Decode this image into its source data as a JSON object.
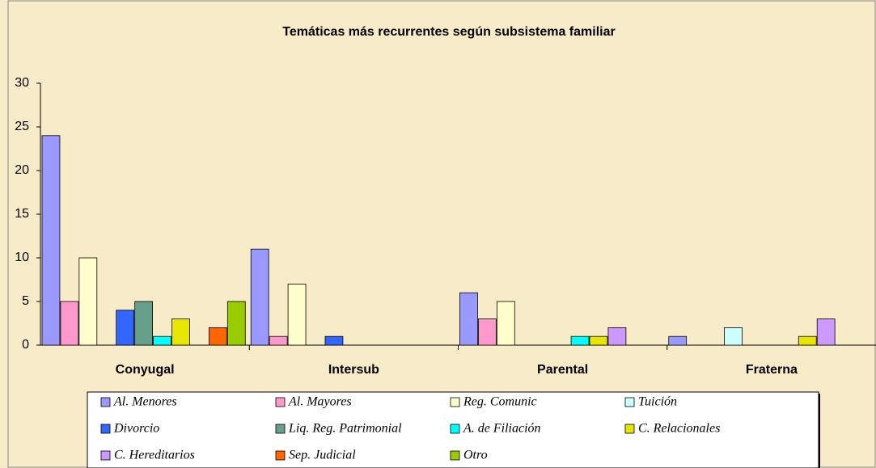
{
  "chart_data": {
    "type": "bar",
    "title": "Temáticas más recurrentes según subsistema familiar",
    "categories": [
      "Conyugal",
      "Intersub",
      "Parental",
      "Fraterna"
    ],
    "ylim": [
      0,
      30
    ],
    "yticks": [
      0,
      5,
      10,
      15,
      20,
      25,
      30
    ],
    "series": [
      {
        "name": "Al. Menores",
        "color": "#9999ff",
        "values": [
          24,
          11,
          6,
          1
        ]
      },
      {
        "name": "Al. Mayores",
        "color": "#ff99cc",
        "values": [
          5,
          1,
          3,
          0
        ]
      },
      {
        "name": "Reg. Comunic",
        "color": "#ffffcc",
        "values": [
          10,
          7,
          5,
          0
        ]
      },
      {
        "name": "Tuición",
        "color": "#ccffff",
        "values": [
          0,
          0,
          0,
          2
        ]
      },
      {
        "name": "Divorcio",
        "color": "#3366ff",
        "values": [
          4,
          1,
          0,
          0
        ]
      },
      {
        "name": "Liq. Reg. Patrimonial",
        "color": "#66a08a",
        "values": [
          5,
          0,
          0,
          0
        ]
      },
      {
        "name": "A. de Filiación",
        "color": "#00ffff",
        "values": [
          1,
          0,
          1,
          0
        ]
      },
      {
        "name": "C. Relacionales",
        "color": "#e6e600",
        "values": [
          3,
          0,
          1,
          1
        ]
      },
      {
        "name": "C. Hereditarios",
        "color": "#cc99ff",
        "values": [
          0,
          0,
          2,
          3
        ]
      },
      {
        "name": "Sep. Judicial",
        "color": "#ff6600",
        "values": [
          2,
          0,
          0,
          0
        ]
      },
      {
        "name": "Otro",
        "color": "#99cc00",
        "values": [
          5,
          0,
          0,
          0
        ]
      }
    ]
  }
}
